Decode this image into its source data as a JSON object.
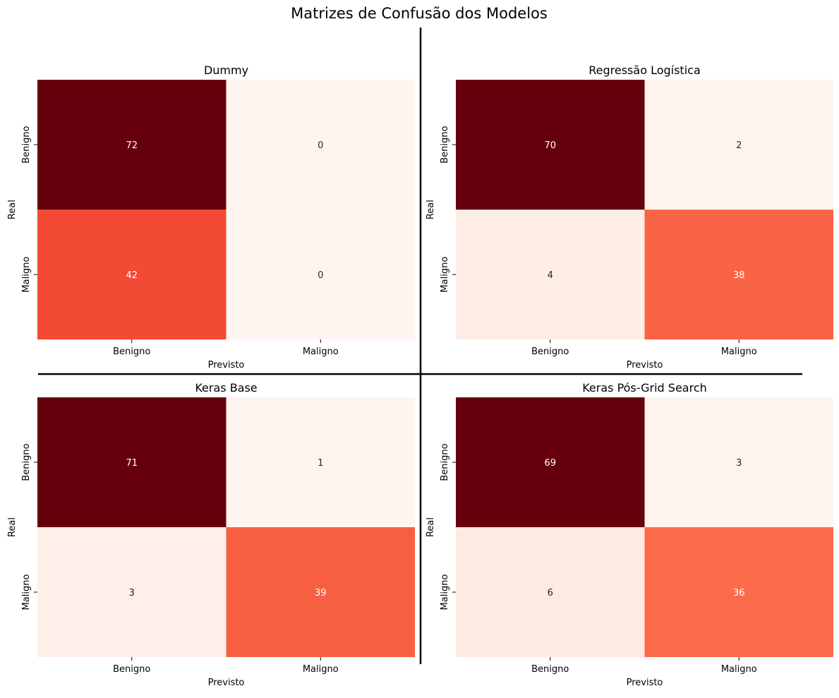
{
  "title": "Matrizes de Confusão dos Modelos",
  "chart_data": [
    {
      "type": "heatmap",
      "title": "Dummy",
      "xlabel": "Previsto",
      "ylabel": "Real",
      "x_categories": [
        "Benigno",
        "Maligno"
      ],
      "y_categories": [
        "Benigno",
        "Maligno"
      ],
      "values": [
        [
          72,
          0
        ],
        [
          42,
          0
        ]
      ],
      "colors": [
        [
          "#67000d",
          "#fff5f0"
        ],
        [
          "#f24a35",
          "#fff5f0"
        ]
      ]
    },
    {
      "type": "heatmap",
      "title": "Regressão Logística",
      "xlabel": "Previsto",
      "ylabel": "Real",
      "x_categories": [
        "Benigno",
        "Maligno"
      ],
      "y_categories": [
        "Benigno",
        "Maligno"
      ],
      "values": [
        [
          70,
          2
        ],
        [
          4,
          38
        ]
      ],
      "colors": [
        [
          "#67000d",
          "#fff4ef"
        ],
        [
          "#feede5",
          "#f96346"
        ]
      ]
    },
    {
      "type": "heatmap",
      "title": "Keras Base",
      "xlabel": "Previsto",
      "ylabel": "Real",
      "x_categories": [
        "Benigno",
        "Maligno"
      ],
      "y_categories": [
        "Benigno",
        "Maligno"
      ],
      "values": [
        [
          71,
          1
        ],
        [
          3,
          39
        ]
      ],
      "colors": [
        [
          "#67000d",
          "#fff4ef"
        ],
        [
          "#ffefe8",
          "#f75f43"
        ]
      ]
    },
    {
      "type": "heatmap",
      "title": "Keras Pós-Grid Search",
      "xlabel": "Previsto",
      "ylabel": "Real",
      "x_categories": [
        "Benigno",
        "Maligno"
      ],
      "y_categories": [
        "Benigno",
        "Maligno"
      ],
      "values": [
        [
          69,
          3
        ],
        [
          6,
          36
        ]
      ],
      "colors": [
        [
          "#67000d",
          "#fff3ed"
        ],
        [
          "#feeae1",
          "#fc6b4b"
        ]
      ]
    }
  ]
}
